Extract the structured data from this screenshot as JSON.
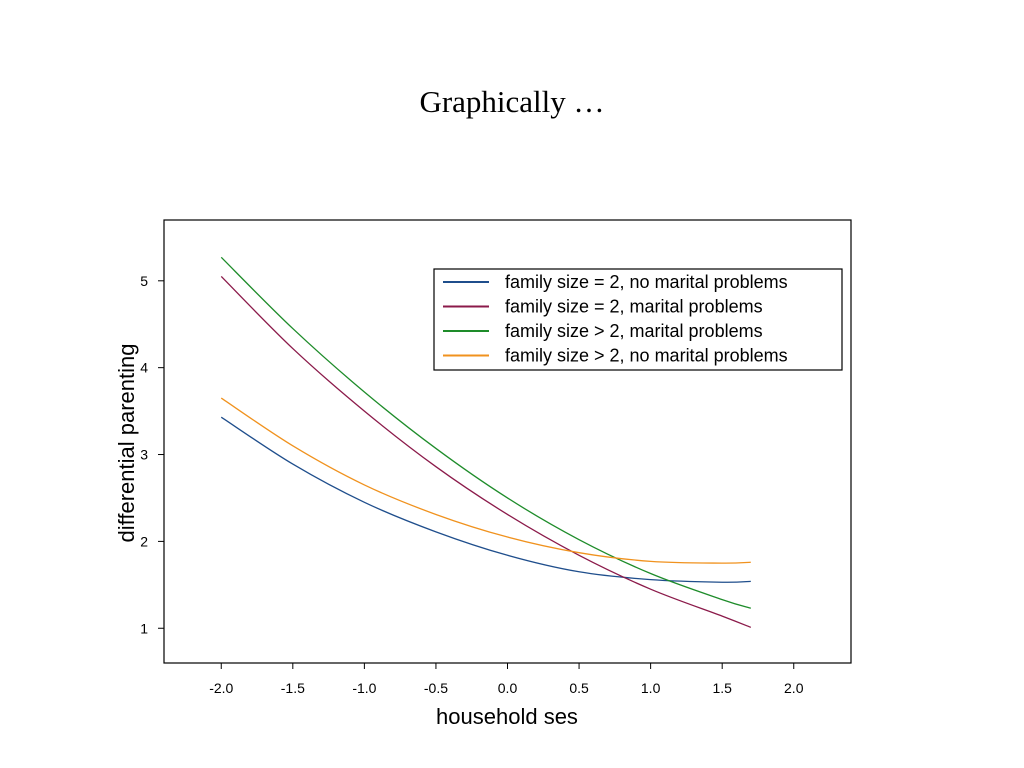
{
  "slide": {
    "title": "Graphically …"
  },
  "chart_data": {
    "type": "line",
    "xlabel": "household ses",
    "ylabel": "differential parenting",
    "xlim": [
      -2.4,
      2.4
    ],
    "ylim": [
      0.6,
      5.7
    ],
    "xticks": [
      -2.0,
      -1.5,
      -1.0,
      -0.5,
      0.0,
      0.5,
      1.0,
      1.5,
      2.0
    ],
    "xtick_labels": [
      "-2.0",
      "-1.5",
      "-1.0",
      "-0.5",
      "0.0",
      "0.5",
      "1.0",
      "1.5",
      "2.0"
    ],
    "yticks": [
      1,
      2,
      3,
      4,
      5
    ],
    "ytick_labels": [
      "1",
      "2",
      "3",
      "4",
      "5"
    ],
    "grid": false,
    "legend_position": "top-right",
    "series": [
      {
        "name": "family size = 2, no marital problems",
        "color": "#1f4e8c",
        "x": [
          -2.0,
          -1.5,
          -1.0,
          -0.5,
          0.0,
          0.5,
          1.0,
          1.5,
          1.7
        ],
        "y": [
          3.43,
          2.89,
          2.45,
          2.11,
          1.84,
          1.65,
          1.56,
          1.53,
          1.54
        ]
      },
      {
        "name": "family size = 2, marital problems",
        "color": "#8b1a4a",
        "x": [
          -2.0,
          -1.5,
          -1.0,
          -0.5,
          0.0,
          0.5,
          1.0,
          1.5,
          1.7
        ],
        "y": [
          5.05,
          4.22,
          3.5,
          2.86,
          2.31,
          1.84,
          1.45,
          1.14,
          1.01
        ]
      },
      {
        "name": "family size > 2, marital problems",
        "color": "#1e8c2a",
        "x": [
          -2.0,
          -1.5,
          -1.0,
          -0.5,
          0.0,
          0.5,
          1.0,
          1.5,
          1.7
        ],
        "y": [
          5.27,
          4.45,
          3.72,
          3.07,
          2.5,
          2.02,
          1.63,
          1.33,
          1.23
        ]
      },
      {
        "name": "family size > 2, no marital problems",
        "color": "#f0921e",
        "x": [
          -2.0,
          -1.5,
          -1.0,
          -0.5,
          0.0,
          0.5,
          1.0,
          1.5,
          1.7
        ],
        "y": [
          3.65,
          3.1,
          2.65,
          2.31,
          2.05,
          1.87,
          1.77,
          1.75,
          1.76
        ]
      }
    ]
  }
}
